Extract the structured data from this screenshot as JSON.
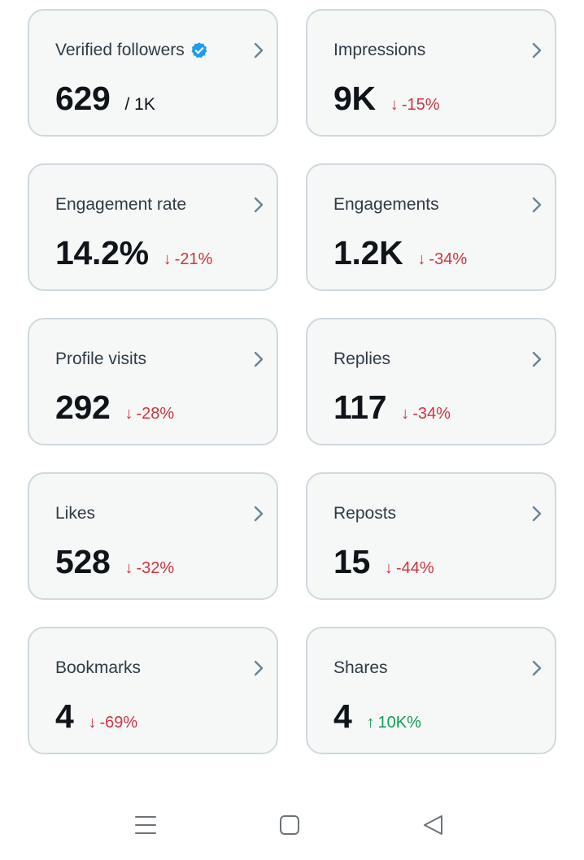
{
  "cards": [
    {
      "title": "Verified followers",
      "value": "629",
      "suffix": "/ 1K",
      "verified": true
    },
    {
      "title": "Impressions",
      "value": "9K",
      "delta": "-15%",
      "direction": "down"
    },
    {
      "title": "Engagement rate",
      "value": "14.2%",
      "delta": "-21%",
      "direction": "down"
    },
    {
      "title": "Engagements",
      "value": "1.2K",
      "delta": "-34%",
      "direction": "down"
    },
    {
      "title": "Profile visits",
      "value": "292",
      "delta": "-28%",
      "direction": "down"
    },
    {
      "title": "Replies",
      "value": "117",
      "delta": "-34%",
      "direction": "down"
    },
    {
      "title": "Likes",
      "value": "528",
      "delta": "-32%",
      "direction": "down"
    },
    {
      "title": "Reposts",
      "value": "15",
      "delta": "-44%",
      "direction": "down"
    },
    {
      "title": "Bookmarks",
      "value": "4",
      "delta": "-69%",
      "direction": "down"
    },
    {
      "title": "Shares",
      "value": "4",
      "delta": "10K%",
      "direction": "up"
    }
  ],
  "icons": {
    "verified": "verified-badge-icon",
    "chevron": "chevron-right-icon",
    "arrow_down": "arrow-down-icon",
    "arrow_up": "arrow-up-icon"
  },
  "navbar": {
    "buttons": [
      "menu-icon",
      "home-square-icon",
      "back-triangle-icon"
    ]
  },
  "colors": {
    "card_bg": "#f6f7f7",
    "card_border": "#cfd9de",
    "negative": "#d1343d",
    "positive": "#139b57",
    "verified": "#1d9bf0",
    "chevron": "#6b8495"
  }
}
